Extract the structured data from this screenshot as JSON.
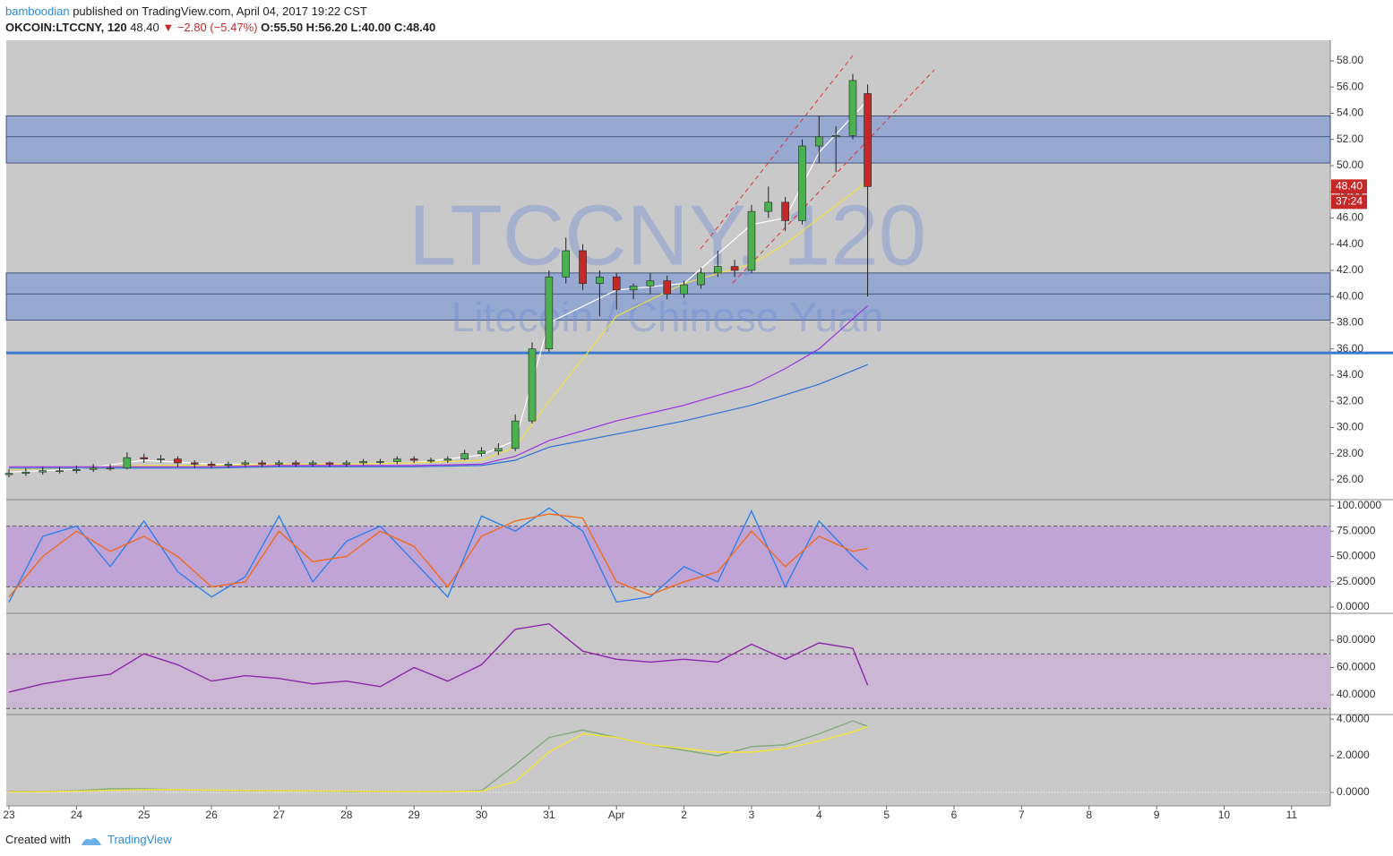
{
  "header": {
    "author": "bamboodian",
    "published": "published on TradingView.com, April 04, 2017 19:22 CST",
    "symbol": "OKCOIN:LTCCNY, 120",
    "last": "48.40",
    "change": "▼ −2.80 (−5.47%)",
    "ohlc": "O:55.50 H:56.20 L:40.00 C:48.40"
  },
  "footer": {
    "created": "Created with",
    "brand": "TradingView"
  },
  "chart_data": [
    {
      "type": "candlestick",
      "watermark": "LTCCNY, 120",
      "watermark_sub": "Litecoin / Chinese Yuan",
      "up_color": "#4caf50",
      "down_color": "#c62828",
      "xlim": [
        -0.04,
        19.56
      ],
      "xticks": [
        {
          "value": 0,
          "label": "23"
        },
        {
          "value": 1,
          "label": "24"
        },
        {
          "value": 2,
          "label": "25"
        },
        {
          "value": 3,
          "label": "26"
        },
        {
          "value": 4,
          "label": "27"
        },
        {
          "value": 5,
          "label": "28"
        },
        {
          "value": 6,
          "label": "29"
        },
        {
          "value": 7,
          "label": "30"
        },
        {
          "value": 8,
          "label": "31"
        },
        {
          "value": 9,
          "label": "Apr"
        },
        {
          "value": 10,
          "label": "2"
        },
        {
          "value": 11,
          "label": "3"
        },
        {
          "value": 12,
          "label": "4"
        },
        {
          "value": 13,
          "label": "5"
        },
        {
          "value": 14,
          "label": "6"
        },
        {
          "value": 15,
          "label": "7"
        },
        {
          "value": 16,
          "label": "8"
        },
        {
          "value": 17,
          "label": "9"
        },
        {
          "value": 18,
          "label": "10"
        },
        {
          "value": 19,
          "label": "11"
        }
      ],
      "ylim": [
        24.56,
        59.57
      ],
      "yticks": [
        {
          "value": 26,
          "label": "26.00"
        },
        {
          "value": 28,
          "label": "28.00"
        },
        {
          "value": 30,
          "label": "30.00"
        },
        {
          "value": 32,
          "label": "32.00"
        },
        {
          "value": 34,
          "label": "34.00"
        },
        {
          "value": 36,
          "label": "36.00"
        },
        {
          "value": 38,
          "label": "38.00"
        },
        {
          "value": 40,
          "label": "40.00"
        },
        {
          "value": 42,
          "label": "42.00"
        },
        {
          "value": 44,
          "label": "44.00"
        },
        {
          "value": 46,
          "label": "46.00"
        },
        {
          "value": 48,
          "label": "48.00"
        },
        {
          "value": 50,
          "label": "50.00"
        },
        {
          "value": 52,
          "label": "52.00"
        },
        {
          "value": 54,
          "label": "54.00"
        },
        {
          "value": 56,
          "label": "56.00"
        },
        {
          "value": 58,
          "label": "58.00"
        }
      ],
      "last_price_label": "48.40",
      "countdown": "37:24",
      "zones": [
        {
          "from": 50.2,
          "to": 53.8,
          "mid": 52.2
        },
        {
          "from": 38.2,
          "to": 41.8,
          "mid": 40.2
        }
      ],
      "hline": 35.7,
      "x": [
        0,
        0.25,
        0.5,
        0.75,
        1,
        1.25,
        1.5,
        1.75,
        2,
        2.25,
        2.5,
        2.75,
        3,
        3.25,
        3.5,
        3.75,
        4,
        4.25,
        4.5,
        4.75,
        5,
        5.25,
        5.5,
        5.75,
        6,
        6.25,
        6.5,
        6.75,
        7,
        7.25,
        7.5,
        7.75,
        8,
        8.25,
        8.5,
        8.75,
        9,
        9.25,
        9.5,
        9.75,
        10,
        10.25,
        10.5,
        10.75,
        11,
        11.25,
        11.5,
        11.75,
        12,
        12.25,
        12.5,
        12.72
      ],
      "open": [
        26.4,
        26.5,
        26.6,
        26.7,
        26.7,
        26.8,
        26.9,
        26.9,
        27.7,
        27.6,
        27.6,
        27.3,
        27.2,
        27.1,
        27.2,
        27.3,
        27.2,
        27.3,
        27.2,
        27.3,
        27.2,
        27.3,
        27.4,
        27.4,
        27.6,
        27.5,
        27.5,
        27.6,
        28.0,
        28.2,
        28.4,
        30.5,
        36.0,
        41.5,
        43.5,
        41.0,
        41.5,
        40.5,
        40.8,
        41.2,
        40.2,
        40.9,
        41.8,
        42.3,
        42.0,
        46.5,
        47.2,
        45.8,
        51.5,
        52.2,
        52.3,
        55.5
      ],
      "high": [
        26.8,
        26.9,
        27.0,
        27.0,
        27.1,
        27.2,
        27.2,
        28.1,
        28.0,
        27.9,
        27.8,
        27.5,
        27.4,
        27.4,
        27.5,
        27.5,
        27.5,
        27.5,
        27.5,
        27.4,
        27.5,
        27.6,
        27.6,
        27.8,
        27.8,
        27.7,
        27.8,
        28.3,
        28.5,
        28.8,
        31.0,
        36.5,
        42.0,
        44.5,
        44.0,
        42.0,
        41.8,
        41.0,
        41.8,
        41.6,
        41.2,
        42.2,
        43.5,
        42.8,
        47.0,
        48.4,
        47.6,
        52.0,
        53.8,
        53.0,
        57.0,
        56.2
      ],
      "low": [
        26.2,
        26.3,
        26.4,
        26.5,
        26.5,
        26.6,
        26.7,
        26.8,
        27.3,
        27.3,
        27.0,
        26.9,
        26.9,
        26.9,
        27.0,
        27.0,
        27.0,
        27.0,
        27.0,
        27.0,
        27.0,
        27.1,
        27.2,
        27.2,
        27.3,
        27.3,
        27.3,
        27.5,
        27.8,
        27.9,
        28.2,
        30.3,
        35.8,
        41.0,
        40.5,
        38.5,
        39.0,
        39.8,
        40.2,
        39.8,
        39.9,
        40.6,
        41.5,
        41.5,
        41.8,
        46.0,
        45.0,
        45.5,
        50.2,
        49.5,
        52.0,
        40.0
      ],
      "close": [
        26.5,
        26.6,
        26.7,
        26.7,
        26.8,
        26.9,
        26.9,
        27.7,
        27.6,
        27.6,
        27.3,
        27.2,
        27.1,
        27.2,
        27.3,
        27.2,
        27.3,
        27.2,
        27.3,
        27.2,
        27.3,
        27.4,
        27.4,
        27.6,
        27.5,
        27.5,
        27.6,
        28.0,
        28.2,
        28.4,
        30.5,
        36.0,
        41.5,
        43.5,
        41.0,
        41.5,
        40.5,
        40.8,
        41.2,
        40.2,
        40.9,
        41.8,
        42.3,
        42.0,
        46.5,
        47.2,
        45.8,
        51.5,
        52.2,
        52.3,
        56.5,
        48.4
      ],
      "series": [
        {
          "color": "#ffffff",
          "x": [
            0,
            1,
            2,
            3,
            4,
            5,
            6,
            7,
            7.5,
            8,
            9,
            10,
            11,
            11.5,
            12,
            12.72
          ],
          "values": [
            26.6,
            26.8,
            27.5,
            27.2,
            27.2,
            27.2,
            27.3,
            27.9,
            29,
            38,
            40.5,
            41,
            45.5,
            46,
            51,
            55.0
          ]
        },
        {
          "color": "#f0e040",
          "x": [
            0,
            1,
            2,
            3,
            4,
            5,
            6,
            7,
            7.5,
            8,
            9,
            10,
            11,
            11.5,
            12,
            12.72
          ],
          "values": [
            26.8,
            26.9,
            27.1,
            27.1,
            27.2,
            27.2,
            27.3,
            27.5,
            28.5,
            32,
            38.5,
            41,
            42.5,
            44,
            46,
            48.8
          ]
        },
        {
          "color": "#9b30e0",
          "x": [
            0,
            1,
            2,
            3,
            4,
            5,
            6,
            7,
            7.5,
            8,
            9,
            10,
            11,
            11.5,
            12,
            12.72
          ],
          "values": [
            27.0,
            27.0,
            27.0,
            27.0,
            27.1,
            27.1,
            27.1,
            27.2,
            27.8,
            29.0,
            30.5,
            31.7,
            33.2,
            34.5,
            36,
            39.3
          ]
        },
        {
          "color": "#2b6fd6",
          "x": [
            0,
            1,
            2,
            3,
            4,
            5,
            6,
            7,
            7.5,
            8,
            9,
            10,
            11,
            11.5,
            12,
            12.72
          ],
          "values": [
            26.9,
            26.9,
            26.9,
            26.9,
            27.0,
            27.0,
            27.0,
            27.1,
            27.5,
            28.5,
            29.5,
            30.5,
            31.7,
            32.5,
            33.3,
            34.8
          ]
        }
      ]
    },
    {
      "type": "line",
      "ylim": [
        -5.3,
        105.3
      ],
      "band": [
        20,
        80
      ],
      "band_color": "#c0a4d6",
      "yticks": [
        {
          "value": 0,
          "label": "0.0000"
        },
        {
          "value": 25,
          "label": "25.0000"
        },
        {
          "value": 50,
          "label": "50.0000"
        },
        {
          "value": 75,
          "label": "75.0000"
        },
        {
          "value": 100,
          "label": "100.0000"
        }
      ],
      "x": [
        0,
        0.5,
        1,
        1.5,
        2,
        2.5,
        3,
        3.5,
        4,
        4.5,
        5,
        5.5,
        6,
        6.5,
        7,
        7.5,
        8,
        8.5,
        9,
        9.5,
        10,
        10.5,
        11,
        11.5,
        12,
        12.5,
        12.72
      ],
      "series": [
        {
          "color": "#2f80ed",
          "values": [
            5,
            70,
            80,
            40,
            85,
            35,
            10,
            30,
            90,
            25,
            65,
            80,
            45,
            10,
            90,
            75,
            98,
            75,
            5,
            10,
            40,
            25,
            95,
            20,
            85,
            50,
            37
          ]
        },
        {
          "color": "#f26a1b",
          "values": [
            10,
            50,
            75,
            55,
            70,
            50,
            20,
            25,
            75,
            45,
            50,
            75,
            60,
            20,
            70,
            85,
            92,
            88,
            25,
            12,
            25,
            35,
            75,
            40,
            70,
            55,
            58
          ]
        }
      ]
    },
    {
      "type": "line",
      "ylim": [
        26.2,
        99
      ],
      "band": [
        30,
        70
      ],
      "band_color": "#cbb7d4",
      "yticks": [
        {
          "value": 40,
          "label": "40.0000"
        },
        {
          "value": 60,
          "label": "60.0000"
        },
        {
          "value": 80,
          "label": "80.0000"
        }
      ],
      "x": [
        0,
        0.5,
        1,
        1.5,
        2,
        2.5,
        3,
        3.5,
        4,
        4.5,
        5,
        5.5,
        6,
        6.5,
        7,
        7.5,
        8,
        8.5,
        9,
        9.5,
        10,
        10.5,
        11,
        11.5,
        12,
        12.5,
        12.72
      ],
      "series": [
        {
          "color": "#8e24aa",
          "values": [
            42,
            48,
            52,
            55,
            70,
            62,
            50,
            54,
            52,
            48,
            50,
            46,
            60,
            50,
            62,
            88,
            92,
            72,
            66,
            64,
            66,
            64,
            77,
            66,
            78,
            74,
            47
          ]
        }
      ]
    },
    {
      "type": "line",
      "ylim": [
        -0.73,
        4.2
      ],
      "yticks": [
        {
          "value": 0,
          "label": "0.0000"
        },
        {
          "value": 2,
          "label": "2.0000"
        },
        {
          "value": 4,
          "label": "4.0000"
        }
      ],
      "x": [
        0,
        0.5,
        1,
        1.5,
        2,
        2.5,
        3,
        3.5,
        4,
        4.5,
        5,
        5.5,
        6,
        6.5,
        7,
        7.5,
        8,
        8.5,
        9,
        9.5,
        10,
        10.5,
        11,
        11.5,
        12,
        12.5,
        12.72
      ],
      "series": [
        {
          "color": "#7fa87a",
          "values": [
            0.05,
            0.05,
            0.1,
            0.2,
            0.2,
            0.15,
            0.12,
            0.1,
            0.1,
            0.08,
            0.05,
            0.05,
            0.05,
            0.05,
            0.1,
            1.5,
            3.0,
            3.4,
            3.0,
            2.6,
            2.3,
            2.0,
            2.5,
            2.6,
            3.2,
            3.9,
            3.6
          ]
        },
        {
          "color": "#f2e43a",
          "values": [
            0.03,
            0.04,
            0.07,
            0.12,
            0.16,
            0.15,
            0.13,
            0.11,
            0.1,
            0.09,
            0.07,
            0.06,
            0.05,
            0.05,
            0.07,
            0.6,
            2.2,
            3.2,
            3.0,
            2.6,
            2.4,
            2.2,
            2.2,
            2.4,
            2.8,
            3.3,
            3.6
          ]
        }
      ]
    }
  ]
}
